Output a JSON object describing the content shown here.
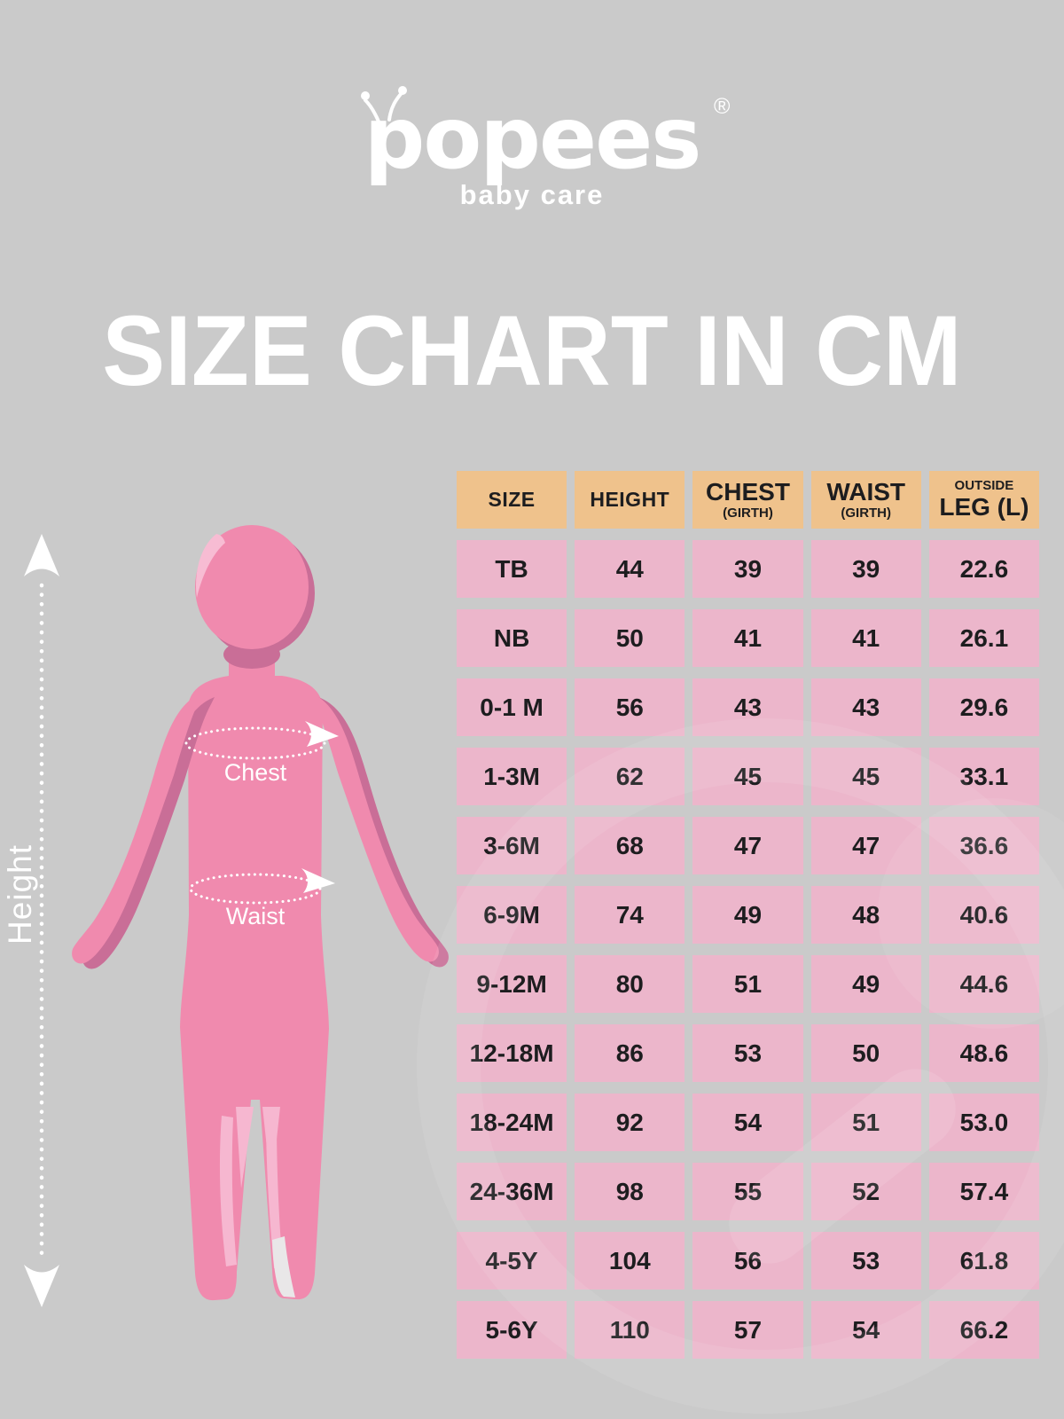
{
  "brand": {
    "logo_text": "popees",
    "registered": "®",
    "tagline": "baby care"
  },
  "title": "SIZE CHART IN CM",
  "figure": {
    "height_label": "Height",
    "chest_label": "Chest",
    "waist_label": "Waist"
  },
  "table": {
    "headers": [
      {
        "main": "SIZE"
      },
      {
        "main": "HEIGHT"
      },
      {
        "main": "CHEST",
        "sub": "(GIRTH)"
      },
      {
        "main": "WAIST",
        "sub": "(GIRTH)"
      },
      {
        "pre": "OUTSIDE",
        "main": "LEG (L)"
      }
    ],
    "rows": [
      [
        "TB",
        "44",
        "39",
        "39",
        "22.6"
      ],
      [
        "NB",
        "50",
        "41",
        "41",
        "26.1"
      ],
      [
        "0-1 M",
        "56",
        "43",
        "43",
        "29.6"
      ],
      [
        "1-3M",
        "62",
        "45",
        "45",
        "33.1"
      ],
      [
        "3-6M",
        "68",
        "47",
        "47",
        "36.6"
      ],
      [
        "6-9M",
        "74",
        "49",
        "48",
        "40.6"
      ],
      [
        "9-12M",
        "80",
        "51",
        "49",
        "44.6"
      ],
      [
        "12-18M",
        "86",
        "53",
        "50",
        "48.6"
      ],
      [
        "18-24M",
        "92",
        "54",
        "51",
        "53.0"
      ],
      [
        "24-36M",
        "98",
        "55",
        "52",
        "57.4"
      ],
      [
        "4-5Y",
        "104",
        "56",
        "53",
        "61.8"
      ],
      [
        "5-6Y",
        "110",
        "57",
        "54",
        "66.2"
      ]
    ]
  },
  "chart_data": {
    "type": "table",
    "title": "SIZE CHART IN CM",
    "units": "cm",
    "columns": [
      "SIZE",
      "HEIGHT",
      "CHEST (GIRTH)",
      "WAIST (GIRTH)",
      "OUTSIDE LEG (L)"
    ],
    "rows": [
      [
        "TB",
        44,
        39,
        39,
        22.6
      ],
      [
        "NB",
        50,
        41,
        41,
        26.1
      ],
      [
        "0-1 M",
        56,
        43,
        43,
        29.6
      ],
      [
        "1-3M",
        62,
        45,
        45,
        33.1
      ],
      [
        "3-6M",
        68,
        47,
        47,
        36.6
      ],
      [
        "6-9M",
        74,
        49,
        48,
        40.6
      ],
      [
        "9-12M",
        80,
        51,
        49,
        44.6
      ],
      [
        "12-18M",
        86,
        53,
        50,
        48.6
      ],
      [
        "18-24M",
        92,
        54,
        51,
        53.0
      ],
      [
        "24-36M",
        98,
        55,
        52,
        57.4
      ],
      [
        "4-5Y",
        104,
        56,
        53,
        61.8
      ],
      [
        "5-6Y",
        110,
        57,
        54,
        66.2
      ]
    ]
  },
  "colors": {
    "background": "#cacaca",
    "header_cell": "#efc28c",
    "data_cell": "#ecb6cb",
    "text_dark": "#1d1d1f",
    "figure_pink": "#f08aae",
    "figure_shadow": "#c96e97",
    "figure_highlight": "#f6b7d0",
    "white": "#ffffff"
  }
}
